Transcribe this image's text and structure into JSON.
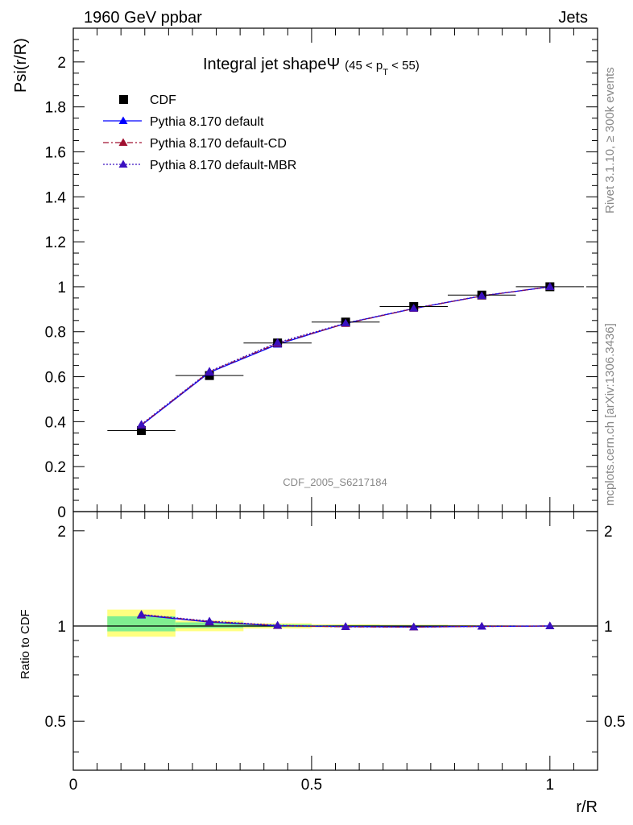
{
  "header": {
    "left": "1960 GeV ppbar",
    "right": "Jets"
  },
  "side_labels": {
    "rivet": "Rivet 3.1.10, ≥ 300k events",
    "mcplots": "mcplots.cern.ch [arXiv:1306.3436]"
  },
  "analysis_id": "CDF_2005_S6217184",
  "chart_data": [
    {
      "type": "line",
      "title": "Integral jet shape",
      "title_symbol": "Ψ",
      "title_range": "(45 < p",
      "title_sub": "T",
      "title_range_end": " < 55)",
      "ylabel": "Psi(r/R)",
      "xlim": [
        0,
        1.1
      ],
      "ylim": [
        0,
        2.15
      ],
      "y_ticks": [
        0,
        0.2,
        0.4,
        0.6,
        0.8,
        1,
        1.2,
        1.4,
        1.6,
        1.8,
        2
      ],
      "y_tick_labels": [
        "0",
        "0.2",
        "0.4",
        "0.6",
        "0.8",
        "1",
        "1.2",
        "1.4",
        "1.6",
        "1.8",
        "2"
      ],
      "legend_position": "top-left",
      "series": [
        {
          "name": "CDF",
          "kind": "data",
          "color": "#000000",
          "x": [
            0.1429,
            0.2857,
            0.4286,
            0.5714,
            0.7143,
            0.8571,
            1.0
          ],
          "y": [
            0.36,
            0.605,
            0.75,
            0.843,
            0.912,
            0.963,
            1.0
          ],
          "xerr": [
            0.0714,
            0.0714,
            0.0714,
            0.0714,
            0.0714,
            0.0714,
            0.0714
          ]
        },
        {
          "name": "Pythia 8.170 default",
          "kind": "mc",
          "color": "#0000ff",
          "dash": "",
          "x": [
            0.1429,
            0.2857,
            0.4286,
            0.5714,
            0.7143,
            0.8571,
            1.0
          ],
          "y": [
            0.384,
            0.619,
            0.744,
            0.837,
            0.903,
            0.959,
            1.0
          ]
        },
        {
          "name": "Pythia 8.170 default-CD",
          "kind": "mc",
          "color": "#a01030",
          "dash": "7,3,2,3",
          "x": [
            0.1429,
            0.2857,
            0.4286,
            0.5714,
            0.7143,
            0.8571,
            1.0
          ],
          "y": [
            0.386,
            0.622,
            0.748,
            0.836,
            0.903,
            0.959,
            1.0
          ]
        },
        {
          "name": "Pythia 8.170 default-MBR",
          "kind": "mc",
          "color": "#3a10c0",
          "dash": "2,2",
          "x": [
            0.1429,
            0.2857,
            0.4286,
            0.5714,
            0.7143,
            0.8571,
            1.0
          ],
          "y": [
            0.388,
            0.624,
            0.752,
            0.838,
            0.904,
            0.96,
            1.0
          ]
        }
      ]
    },
    {
      "type": "line",
      "ylabel": "Ratio to CDF",
      "xlabel": "r/R",
      "xlim": [
        0,
        1.1
      ],
      "ylim": [
        0.35,
        2.3
      ],
      "x_ticks": [
        0,
        0.5,
        1
      ],
      "x_tick_labels": [
        "0",
        "0.5",
        "1"
      ],
      "y_major_ticks": [
        0.5,
        1,
        2
      ],
      "y_tick_labels": [
        "0.5",
        "1",
        "2"
      ],
      "band_colors": {
        "inner": "#80ee90",
        "outer": "#ffff80"
      },
      "bands": [
        {
          "x": [
            0.0714,
            0.2143
          ],
          "inner": [
            0.962,
            1.073
          ],
          "outer": [
            0.925,
            1.127
          ]
        },
        {
          "x": [
            0.2143,
            0.3571
          ],
          "inner": [
            0.985,
            1.027
          ],
          "outer": [
            0.963,
            1.04
          ]
        },
        {
          "x": [
            0.3571,
            0.5
          ],
          "inner": [
            0.993,
            1.012
          ],
          "outer": [
            0.982,
            1.02
          ]
        },
        {
          "x": [
            0.5,
            0.6429
          ],
          "inner": [
            0.996,
            1.007
          ],
          "outer": [
            0.99,
            1.012
          ]
        },
        {
          "x": [
            0.6429,
            0.7857
          ],
          "inner": [
            0.997,
            1.005
          ],
          "outer": [
            0.993,
            1.009
          ]
        },
        {
          "x": [
            0.7857,
            0.9286
          ],
          "inner": [
            0.998,
            1.003
          ],
          "outer": [
            0.996,
            1.005
          ]
        },
        {
          "x": [
            0.9286,
            1.0714
          ],
          "inner": [
            0.999,
            1.001
          ],
          "outer": [
            0.998,
            1.002
          ]
        }
      ],
      "series": [
        {
          "name": "Pythia 8.170 default",
          "color": "#0000ff",
          "dash": "",
          "x": [
            0.1429,
            0.2857,
            0.4286,
            0.5714,
            0.7143,
            0.8571,
            1.0
          ],
          "y": [
            1.082,
            1.029,
            1.002,
            0.996,
            0.993,
            0.997,
            1.0
          ]
        },
        {
          "name": "Pythia 8.170 default-CD",
          "color": "#a01030",
          "dash": "7,3,2,3",
          "x": [
            0.1429,
            0.2857,
            0.4286,
            0.5714,
            0.7143,
            0.8571,
            1.0
          ],
          "y": [
            1.085,
            1.033,
            1.003,
            0.994,
            0.992,
            0.997,
            1.0
          ]
        },
        {
          "name": "Pythia 8.170 default-MBR",
          "color": "#3a10c0",
          "dash": "2,2",
          "x": [
            0.1429,
            0.2857,
            0.4286,
            0.5714,
            0.7143,
            0.8571,
            1.0
          ],
          "y": [
            1.088,
            1.036,
            1.005,
            0.995,
            0.993,
            0.997,
            1.0
          ]
        }
      ]
    }
  ]
}
